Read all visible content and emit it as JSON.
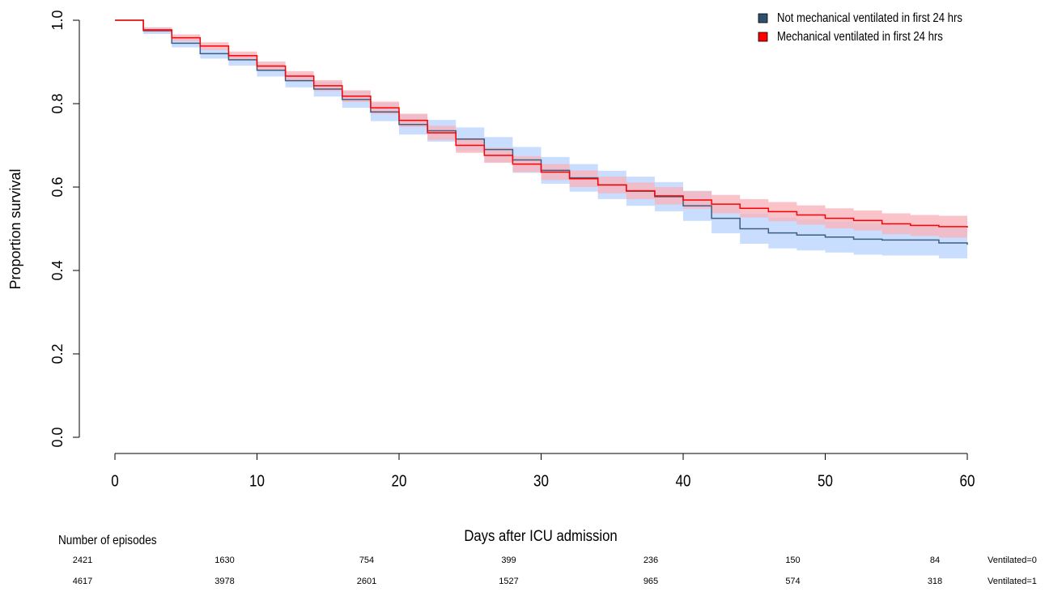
{
  "chart_data": {
    "type": "line",
    "step": true,
    "x_label": "Days after ICU admission",
    "y_label": "Proportion survival",
    "x": [
      0,
      2,
      4,
      6,
      8,
      10,
      12,
      14,
      16,
      18,
      20,
      22,
      24,
      26,
      28,
      30,
      32,
      34,
      36,
      38,
      40,
      42,
      44,
      46,
      48,
      50,
      52,
      54,
      56,
      58,
      60
    ],
    "xlim": [
      0,
      60
    ],
    "xticks": [
      0,
      10,
      20,
      30,
      40,
      50,
      60
    ],
    "ylim": [
      0,
      1
    ],
    "yticks": [
      {
        "value": 0,
        "label": "0.0"
      },
      0.2,
      0.4,
      0.6,
      0.8,
      {
        "value": 1,
        "label": "1.0"
      }
    ],
    "legend": "top-right",
    "series": [
      {
        "name": "Not mechanical ventilated in first 24 hrs",
        "color": "#3e5f80",
        "band_color": "#c9ddff",
        "legend_color": "#2f4f6f",
        "values": [
          1.0,
          0.975,
          0.945,
          0.92,
          0.905,
          0.88,
          0.855,
          0.835,
          0.81,
          0.78,
          0.75,
          0.735,
          0.715,
          0.69,
          0.665,
          0.64,
          0.622,
          0.605,
          0.59,
          0.577,
          0.555,
          0.525,
          0.5,
          0.49,
          0.485,
          0.48,
          0.475,
          0.473,
          0.473,
          0.466,
          0.462
        ],
        "lower": [
          1.0,
          0.967,
          0.935,
          0.908,
          0.891,
          0.865,
          0.839,
          0.817,
          0.79,
          0.758,
          0.726,
          0.709,
          0.687,
          0.66,
          0.634,
          0.608,
          0.589,
          0.571,
          0.555,
          0.542,
          0.519,
          0.489,
          0.464,
          0.453,
          0.448,
          0.443,
          0.438,
          0.436,
          0.436,
          0.429,
          0.425
        ],
        "upper": [
          1.0,
          0.983,
          0.955,
          0.932,
          0.919,
          0.895,
          0.871,
          0.853,
          0.83,
          0.802,
          0.774,
          0.761,
          0.743,
          0.72,
          0.696,
          0.672,
          0.655,
          0.639,
          0.625,
          0.612,
          0.591,
          0.561,
          0.536,
          0.527,
          0.522,
          0.517,
          0.512,
          0.51,
          0.51,
          0.503,
          0.499
        ]
      },
      {
        "name": "Mechanical ventilated in first 24 hrs",
        "color": "#ff0000",
        "band_color": "#f9b4bd",
        "legend_color": "#ff0000",
        "values": [
          1.0,
          0.977,
          0.958,
          0.938,
          0.915,
          0.89,
          0.866,
          0.843,
          0.818,
          0.79,
          0.76,
          0.73,
          0.7,
          0.676,
          0.655,
          0.636,
          0.62,
          0.605,
          0.591,
          0.579,
          0.569,
          0.559,
          0.549,
          0.541,
          0.533,
          0.525,
          0.52,
          0.512,
          0.508,
          0.505,
          0.503
        ],
        "lower": [
          1.0,
          0.971,
          0.95,
          0.929,
          0.905,
          0.879,
          0.854,
          0.83,
          0.804,
          0.775,
          0.744,
          0.713,
          0.682,
          0.658,
          0.636,
          0.617,
          0.6,
          0.585,
          0.571,
          0.558,
          0.548,
          0.537,
          0.527,
          0.518,
          0.51,
          0.501,
          0.496,
          0.487,
          0.483,
          0.479,
          0.477
        ],
        "upper": [
          1.0,
          0.983,
          0.966,
          0.947,
          0.925,
          0.901,
          0.878,
          0.856,
          0.832,
          0.805,
          0.776,
          0.747,
          0.718,
          0.694,
          0.674,
          0.655,
          0.64,
          0.625,
          0.611,
          0.6,
          0.59,
          0.581,
          0.571,
          0.564,
          0.556,
          0.549,
          0.544,
          0.537,
          0.533,
          0.531,
          0.529
        ]
      }
    ],
    "risk_table": {
      "title": "Number of episodes",
      "rows": [
        {
          "name": "Ventilated=0",
          "values": [
            2421,
            1630,
            754,
            399,
            236,
            150,
            84
          ]
        },
        {
          "name": "Ventilated=1",
          "values": [
            4617,
            3978,
            2601,
            1527,
            965,
            574,
            318
          ]
        }
      ]
    }
  }
}
